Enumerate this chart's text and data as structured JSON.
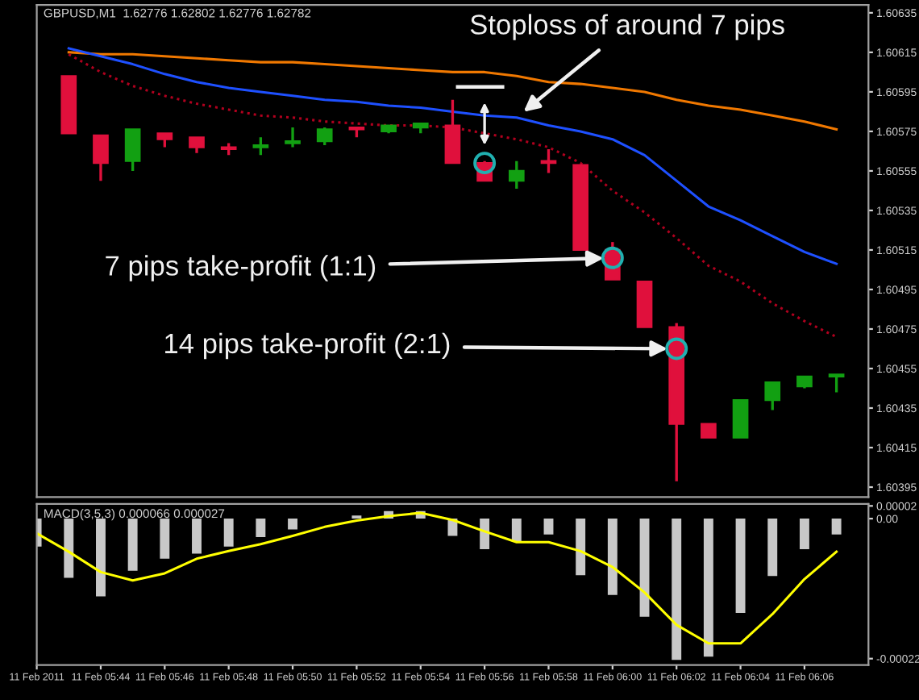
{
  "chart_data": [
    {
      "type": "candlestick",
      "title": "GBPUSD,M1  1.62776 1.62802 1.62776 1.62782",
      "x": [
        "2011-02-11T05:43",
        "2011-02-11T05:44",
        "2011-02-11T05:45",
        "2011-02-11T05:46",
        "2011-02-11T05:47",
        "2011-02-11T05:48",
        "2011-02-11T05:49",
        "2011-02-11T05:50",
        "2011-02-11T05:51",
        "2011-02-11T05:52",
        "2011-02-11T05:53",
        "2011-02-11T05:54",
        "2011-02-11T05:55",
        "2011-02-11T05:56",
        "2011-02-11T05:57",
        "2011-02-11T05:58",
        "2011-02-11T05:59",
        "2011-02-11T06:00",
        "2011-02-11T06:01",
        "2011-02-11T06:02",
        "2011-02-11T06:03",
        "2011-02-11T06:04",
        "2011-02-11T06:05",
        "2011-02-11T06:06",
        "2011-02-11T06:07"
      ],
      "ohlc": [
        [
          1.60603,
          1.60603,
          1.60574,
          1.60574
        ],
        [
          1.60573,
          1.60573,
          1.6055,
          1.60559
        ],
        [
          1.6056,
          1.60576,
          1.60555,
          1.60576
        ],
        [
          1.60574,
          1.60574,
          1.60567,
          1.60571
        ],
        [
          1.60572,
          1.60572,
          1.60564,
          1.60567
        ],
        [
          1.60567,
          1.60569,
          1.60563,
          1.60566
        ],
        [
          1.60567,
          1.60572,
          1.60563,
          1.60568
        ],
        [
          1.60569,
          1.60577,
          1.60567,
          1.6057
        ],
        [
          1.6057,
          1.60577,
          1.60568,
          1.60576
        ],
        [
          1.60577,
          1.60577,
          1.60572,
          1.60576
        ],
        [
          1.60575,
          1.60578,
          1.60574,
          1.60578
        ],
        [
          1.60577,
          1.60579,
          1.60574,
          1.60579
        ],
        [
          1.60578,
          1.60591,
          1.60559,
          1.60559
        ],
        [
          1.60559,
          1.6056,
          1.6055,
          1.6055
        ],
        [
          1.6055,
          1.6056,
          1.60546,
          1.60555
        ],
        [
          1.6056,
          1.60566,
          1.60554,
          1.60559
        ],
        [
          1.60558,
          1.60558,
          1.60515,
          1.60515
        ],
        [
          1.60515,
          1.60519,
          1.605,
          1.605
        ],
        [
          1.60499,
          1.60499,
          1.60476,
          1.60476
        ],
        [
          1.60476,
          1.60478,
          1.60398,
          1.60427
        ],
        [
          1.60427,
          1.60427,
          1.6042,
          1.6042
        ],
        [
          1.6042,
          1.60439,
          1.6042,
          1.60439
        ],
        [
          1.60439,
          1.60448,
          1.60434,
          1.60448
        ],
        [
          1.60446,
          1.60451,
          1.60445,
          1.60451
        ],
        [
          1.60451,
          1.60452,
          1.60443,
          1.60452
        ]
      ],
      "colors": [
        "#e0103c",
        "#e0103c",
        "#12a012",
        "#e0103c",
        "#e0103c",
        "#e0103c",
        "#12a012",
        "#12a012",
        "#12a012",
        "#e0103c",
        "#12a012",
        "#12a012",
        "#e0103c",
        "#e0103c",
        "#12a012",
        "#e0103c",
        "#e0103c",
        "#e0103c",
        "#e0103c",
        "#e0103c",
        "#e0103c",
        "#12a012",
        "#12a012",
        "#12a012",
        "#12a012"
      ],
      "series": [
        {
          "type": "line",
          "color": "#f07800",
          "line_style": "solid",
          "values": [
            1.60615,
            1.60614,
            1.60614,
            1.60613,
            1.60612,
            1.60611,
            1.6061,
            1.6061,
            1.60609,
            1.60608,
            1.60607,
            1.60606,
            1.60605,
            1.60605,
            1.60603,
            1.606,
            1.60599,
            1.60597,
            1.60595,
            1.60591,
            1.60588,
            1.60586,
            1.60583,
            1.6058,
            1.60576
          ]
        },
        {
          "type": "line",
          "color": "#1e50ff",
          "line_style": "solid",
          "values": [
            1.60617,
            1.60613,
            1.60609,
            1.60604,
            1.606,
            1.60597,
            1.60595,
            1.60593,
            1.60591,
            1.6059,
            1.60588,
            1.60587,
            1.60585,
            1.60583,
            1.60582,
            1.60578,
            1.60575,
            1.60571,
            1.60563,
            1.6055,
            1.60537,
            1.6053,
            1.60522,
            1.60514,
            1.60508
          ]
        },
        {
          "type": "line",
          "color": "#b0001e",
          "line_style": "dotted",
          "values": [
            1.60614,
            1.60605,
            1.60598,
            1.60593,
            1.60589,
            1.60586,
            1.60583,
            1.60582,
            1.6058,
            1.60579,
            1.60578,
            1.60578,
            1.60577,
            1.60574,
            1.60571,
            1.60567,
            1.60559,
            1.60545,
            1.60534,
            1.60521,
            1.60507,
            1.60499,
            1.60488,
            1.60479,
            1.60471
          ]
        },
        {
          "type": "scatter",
          "color": "#20b0b0",
          "marker": "circle",
          "x": [
            "2011-02-11T05:56",
            "2011-02-11T06:00",
            "2011-02-11T06:02"
          ],
          "values": [
            1.60559,
            1.60511,
            1.60465
          ]
        }
      ],
      "annotations": [
        {
          "text": "Stoploss of around 7 pips",
          "x": "2011-02-11T05:57",
          "y": 1.60582
        },
        {
          "text": "7 pips take-profit (1:1)",
          "x": "2011-02-11T06:00",
          "y": 1.60511
        },
        {
          "text": "14 pips take-profit (2:1)",
          "x": "2011-02-11T06:02",
          "y": 1.60465
        }
      ],
      "xlim": [
        "2011-02-11T05:42",
        "2011-02-11T06:08"
      ],
      "ylim": [
        1.6039,
        1.60639
      ],
      "yticks": [
        1.60395,
        1.60415,
        1.60435,
        1.60455,
        1.60475,
        1.60495,
        1.60515,
        1.60535,
        1.60555,
        1.60575,
        1.60595,
        1.60615,
        1.60635
      ],
      "tick_labels": "y"
    },
    {
      "type": "bar",
      "title": "MACD(3,5,3) 0.000066 0.000027",
      "x": [
        "2011-02-11T05:42",
        "2011-02-11T05:43",
        "2011-02-11T05:44",
        "2011-02-11T05:45",
        "2011-02-11T05:46",
        "2011-02-11T05:47",
        "2011-02-11T05:48",
        "2011-02-11T05:49",
        "2011-02-11T05:50",
        "2011-02-11T05:51",
        "2011-02-11T05:52",
        "2011-02-11T05:53",
        "2011-02-11T05:54",
        "2011-02-11T05:55",
        "2011-02-11T05:56",
        "2011-02-11T05:57",
        "2011-02-11T05:58",
        "2011-02-11T05:59",
        "2011-02-11T06:00",
        "2011-02-11T06:01",
        "2011-02-11T06:02",
        "2011-02-11T06:03",
        "2011-02-11T06:04",
        "2011-02-11T06:05",
        "2011-02-11T06:06",
        "2011-02-11T06:07"
      ],
      "series": [
        {
          "type": "bar",
          "color": "#c8c8c8",
          "values": [
            -4.4e-05,
            -9.3e-05,
            -0.000122,
            -8.2e-05,
            -6.3e-05,
            -5.5e-05,
            -4.4e-05,
            -2.9e-05,
            -1.7e-05,
            0,
            5e-06,
            1.2e-05,
            1.2e-05,
            -2.7e-05,
            -4.8e-05,
            -3.6e-05,
            -2.5e-05,
            -8.9e-05,
            -0.00012,
            -0.000154,
            -0.000222,
            -0.000217,
            -0.000148,
            -9e-05,
            -4.8e-05,
            -2.5e-05
          ]
        },
        {
          "type": "line",
          "color": "#ffff00",
          "values": [
            -2.3e-05,
            -5.2e-05,
            -8.4e-05,
            -9.7e-05,
            -8.6e-05,
            -6.3e-05,
            -5.1e-05,
            -4e-05,
            -2.7e-05,
            -1.3e-05,
            -3e-06,
            4e-06,
            9e-06,
            -2e-06,
            -2e-05,
            -3.7e-05,
            -3.7e-05,
            -5.1e-05,
            -7.6e-05,
            -0.000116,
            -0.000167,
            -0.000196,
            -0.000196,
            -0.00015,
            -9.5e-05,
            -5.2e-05
          ]
        }
      ],
      "xlim": [
        "2011-02-11T05:42",
        "2011-02-11T06:08"
      ],
      "xticks": [
        {
          "value": "2011-02-11T05:42",
          "label": "11 Feb 2011"
        },
        {
          "value": "2011-02-11T05:44",
          "label": "11 Feb 05:44"
        },
        {
          "value": "2011-02-11T05:46",
          "label": "11 Feb 05:46"
        },
        {
          "value": "2011-02-11T05:48",
          "label": "11 Feb 05:48"
        },
        {
          "value": "2011-02-11T05:50",
          "label": "11 Feb 05:50"
        },
        {
          "value": "2011-02-11T05:52",
          "label": "11 Feb 05:52"
        },
        {
          "value": "2011-02-11T05:54",
          "label": "11 Feb 05:54"
        },
        {
          "value": "2011-02-11T05:56",
          "label": "11 Feb 05:56"
        },
        {
          "value": "2011-02-11T05:58",
          "label": "11 Feb 05:58"
        },
        {
          "value": "2011-02-11T06:00",
          "label": "11 Feb 06:00"
        },
        {
          "value": "2011-02-11T06:02",
          "label": "11 Feb 06:02"
        },
        {
          "value": "2011-02-11T06:04",
          "label": "11 Feb 06:04"
        },
        {
          "value": "2011-02-11T06:06",
          "label": "11 Feb 06:06"
        }
      ],
      "ylim": [
        -0.00023,
        2.3e-05
      ],
      "yticks": [
        {
          "value": 2e-05,
          "label": "0.00002"
        },
        {
          "value": 0,
          "label": "0.00"
        },
        {
          "value": -0.00022,
          "label": "-0.00022"
        }
      ]
    }
  ]
}
